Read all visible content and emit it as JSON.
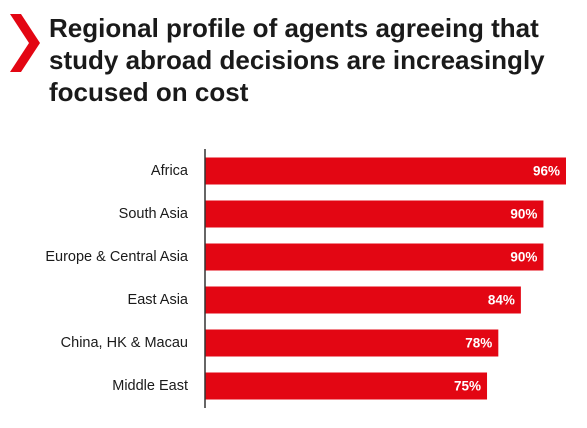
{
  "title_lines": [
    "Regional profile of agents agreeing that",
    "study abroad decisions are increasingly",
    "focused on cost"
  ],
  "colors": {
    "bar": "#e30613",
    "accent": "#e30613",
    "text": "#1a1a1a",
    "axis": "#333333"
  },
  "icons": {
    "title_marker": "chevron-right-icon"
  },
  "chart_data": {
    "type": "bar",
    "orientation": "horizontal",
    "categories": [
      "Africa",
      "South Asia",
      "Europe & Central Asia",
      "East Asia",
      "China, HK & Macau",
      "Middle East"
    ],
    "values": [
      96,
      90,
      90,
      84,
      78,
      75
    ],
    "value_labels": [
      "96%",
      "90%",
      "90%",
      "84%",
      "78%",
      "75%"
    ],
    "xlim": [
      0,
      100
    ],
    "grid": false,
    "legend": "none"
  }
}
